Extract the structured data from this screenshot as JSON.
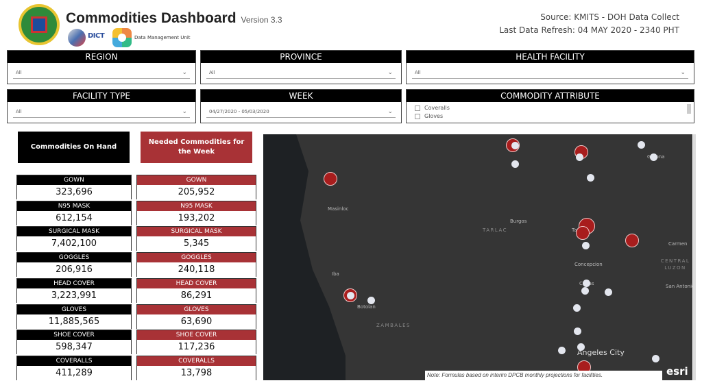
{
  "header": {
    "title": "Commodities Dashboard",
    "version": "Version 3.3",
    "dict_logo_text": "DICT",
    "dmu_label": "Data Management Unit",
    "source": "Source: KMITS - DOH Data Collect",
    "last_refresh": "Last Data Refresh: 04 MAY 2020 - 2340 PHT",
    "seal_text": "REPUBLIC OF THE PHILIPPINES DEPARTMENT OF HEALTH"
  },
  "filters": {
    "region": {
      "label": "REGION",
      "value": "All"
    },
    "province": {
      "label": "PROVINCE",
      "value": "All"
    },
    "health_facility": {
      "label": "HEALTH FACILITY",
      "value": "All"
    },
    "facility_type": {
      "label": "FACILITY TYPE",
      "value": "All"
    },
    "week": {
      "label": "WEEK",
      "value": "04/27/2020 - 05/03/2020"
    },
    "commodity_attribute": {
      "label": "COMMODITY ATTRIBUTE",
      "options": [
        "Coveralls",
        "Gloves"
      ]
    }
  },
  "buttons": {
    "on_hand": "Commodities On Hand",
    "needed": "Needed Commodities for the Week"
  },
  "colors": {
    "on_hand": "#000000",
    "needed": "#a83236"
  },
  "on_hand": [
    {
      "label": "GOWN",
      "value": "323,696"
    },
    {
      "label": "N95 MASK",
      "value": "612,154"
    },
    {
      "label": "SURGICAL MASK",
      "value": "7,402,100"
    },
    {
      "label": "GOGGLES",
      "value": "206,916"
    },
    {
      "label": "HEAD COVER",
      "value": "3,223,991"
    },
    {
      "label": "GLOVES",
      "value": "11,885,565"
    },
    {
      "label": "SHOE COVER",
      "value": "598,347"
    },
    {
      "label": "COVERALLS",
      "value": "411,289"
    }
  ],
  "needed": [
    {
      "label": "GOWN",
      "value": "205,952"
    },
    {
      "label": "N95 MASK",
      "value": "193,202"
    },
    {
      "label": "SURGICAL MASK",
      "value": "5,345"
    },
    {
      "label": "GOGGLES",
      "value": "240,118"
    },
    {
      "label": "HEAD COVER",
      "value": "86,291"
    },
    {
      "label": "GLOVES",
      "value": "63,690"
    },
    {
      "label": "SHOE COVER",
      "value": "117,236"
    },
    {
      "label": "COVERALLS",
      "value": "13,798"
    }
  ],
  "map": {
    "places": [
      "Masinloc",
      "Burgos",
      "Concepcion",
      "Carmen",
      "Iba",
      "Botolan",
      "San Antonio",
      "Angeles City",
      "Gerona",
      "Tarlac",
      "Capas"
    ],
    "regions": [
      "TARLAC",
      "ZAMBALES",
      "CENTRAL LUZON"
    ],
    "note": "Note: Formulas based on interim DPCB monthly projections for facilities.",
    "esri": "esri"
  }
}
